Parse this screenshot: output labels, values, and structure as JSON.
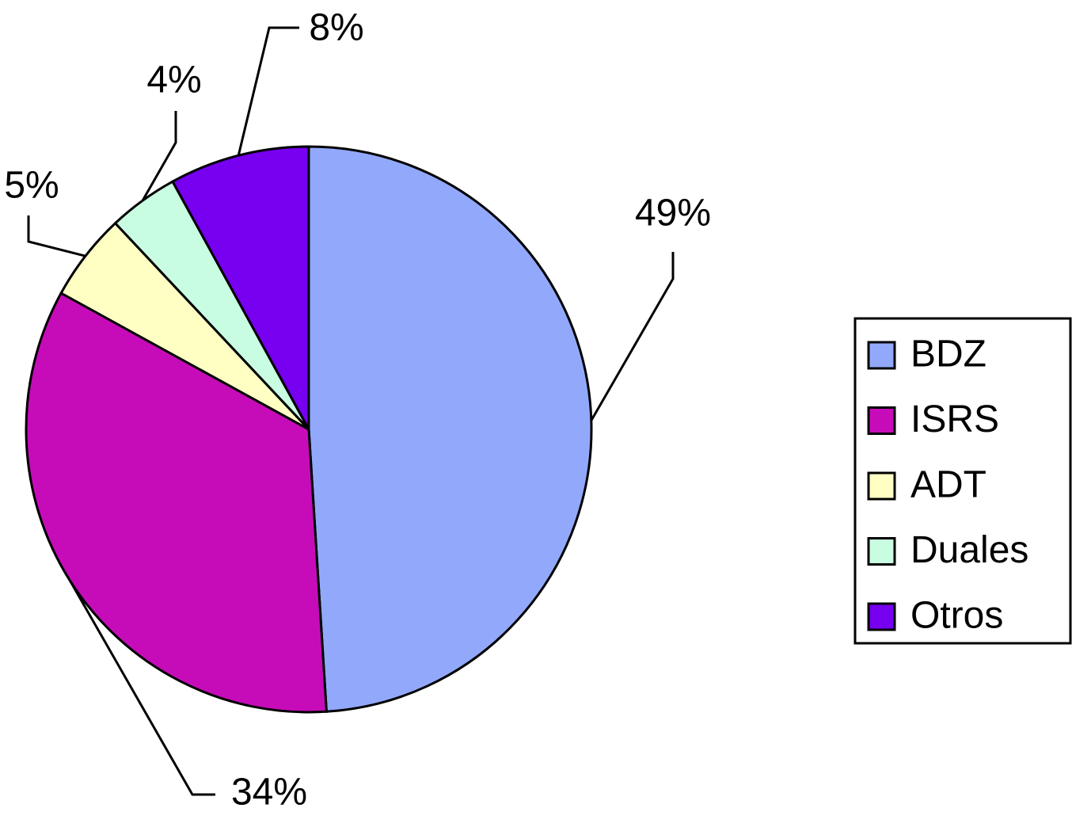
{
  "chart_data": {
    "type": "pie",
    "categories": [
      "BDZ",
      "ISRS",
      "ADT",
      "Duales",
      "Otros"
    ],
    "values": [
      49,
      34,
      5,
      4,
      8
    ],
    "value_labels": [
      "49%",
      "34%",
      "5%",
      "4%",
      "8%"
    ],
    "colors": [
      "#92a9fb",
      "#c60cb9",
      "#ffffc4",
      "#c9fde1",
      "#7600ef"
    ],
    "legend": "right"
  }
}
